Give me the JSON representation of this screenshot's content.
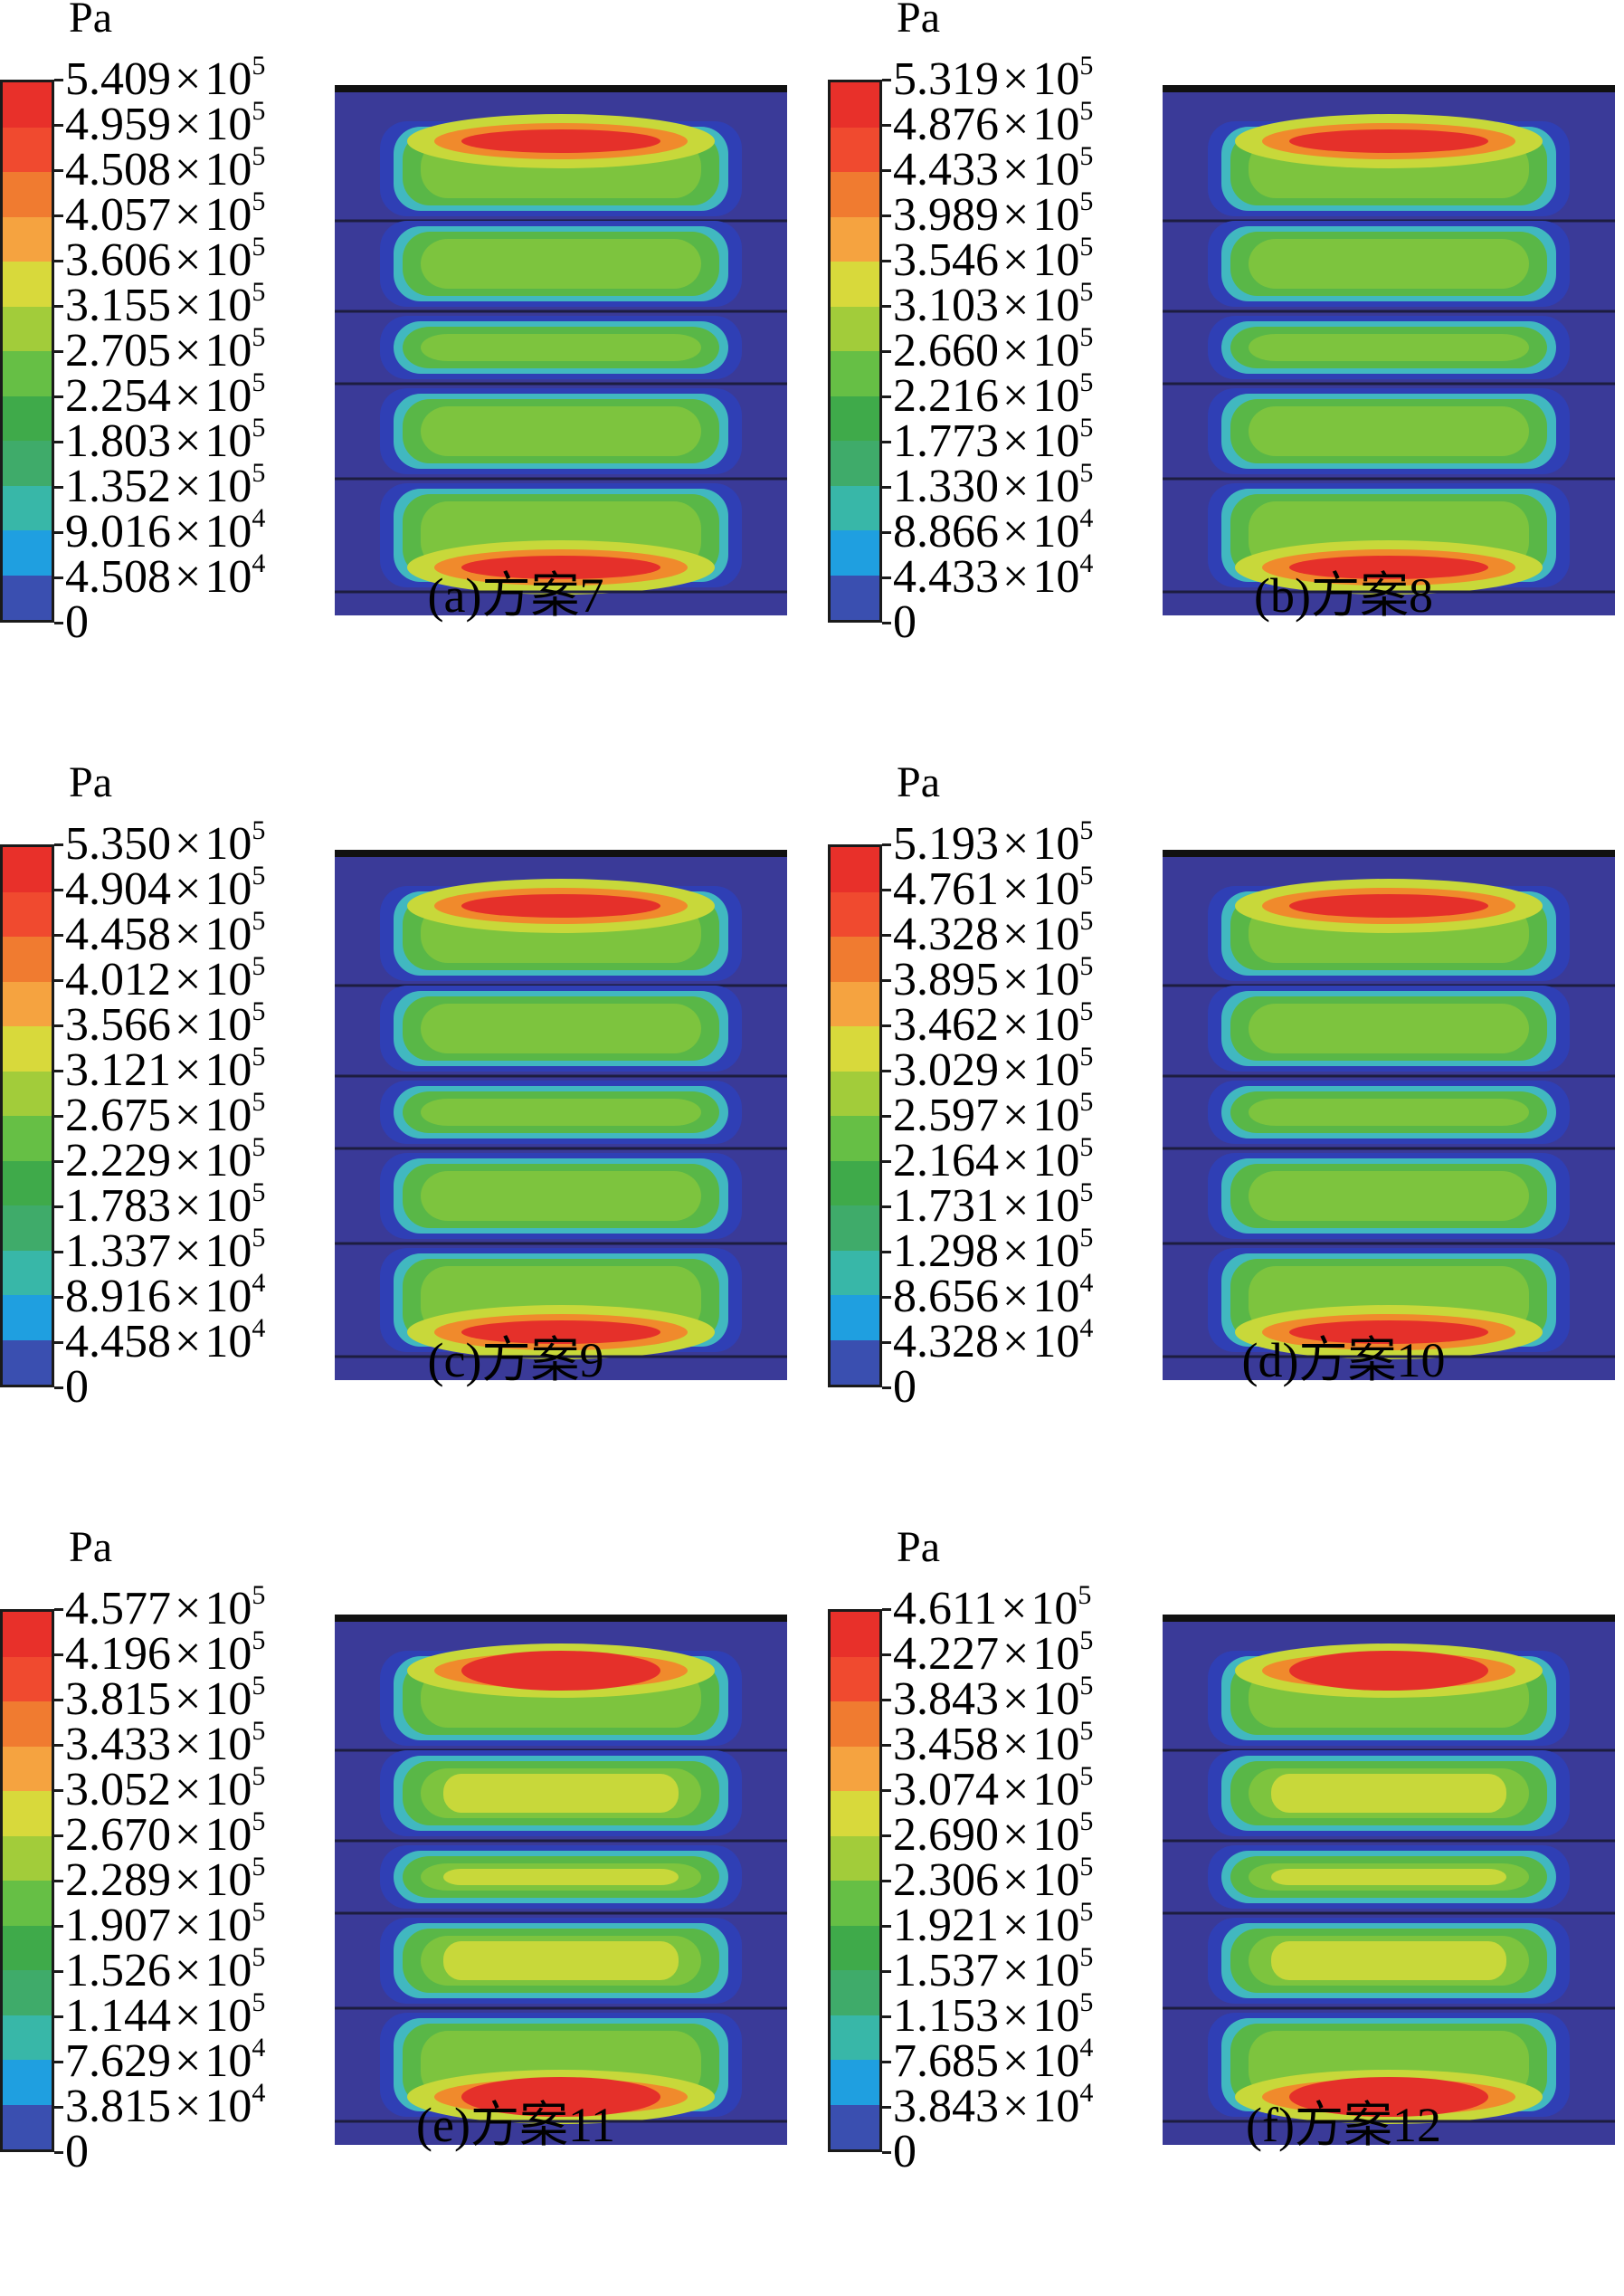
{
  "unit": "Pa",
  "colors": {
    "legend": [
      "#e8302a",
      "#f04a2f",
      "#f07b30",
      "#f5a340",
      "#d8d93b",
      "#a2cc3a",
      "#66bf45",
      "#3faa4a",
      "#3fab6a",
      "#38b7a8",
      "#1f9fe0",
      "#3a4fb0",
      "#3b3b9a"
    ],
    "background": "#3a3a98",
    "edge": "#2f3fb5",
    "cyan": "#41b8c0",
    "green": "#59b747",
    "lightgreen": "#7dc43e",
    "yellow": "#c8d83a",
    "orange": "#f08a2c",
    "red": "#e5302a"
  },
  "panels": [
    {
      "caption": "(a)方案7",
      "labels": [
        [
          "5.409",
          "5"
        ],
        [
          "4.959",
          "5"
        ],
        [
          "4.508",
          "5"
        ],
        [
          "4.057",
          "5"
        ],
        [
          "3.606",
          "5"
        ],
        [
          "3.155",
          "5"
        ],
        [
          "2.705",
          "5"
        ],
        [
          "2.254",
          "5"
        ],
        [
          "1.803",
          "5"
        ],
        [
          "1.352",
          "5"
        ],
        [
          "9.016",
          "4"
        ],
        [
          "4.508",
          "4"
        ],
        [
          "0",
          ""
        ]
      ]
    },
    {
      "caption": "(b)方案8",
      "labels": [
        [
          "5.319",
          "5"
        ],
        [
          "4.876",
          "5"
        ],
        [
          "4.433",
          "5"
        ],
        [
          "3.989",
          "5"
        ],
        [
          "3.546",
          "5"
        ],
        [
          "3.103",
          "5"
        ],
        [
          "2.660",
          "5"
        ],
        [
          "2.216",
          "5"
        ],
        [
          "1.773",
          "5"
        ],
        [
          "1.330",
          "5"
        ],
        [
          "8.866",
          "4"
        ],
        [
          "4.433",
          "4"
        ],
        [
          "0",
          ""
        ]
      ]
    },
    {
      "caption": "(c)方案9",
      "labels": [
        [
          "5.350",
          "5"
        ],
        [
          "4.904",
          "5"
        ],
        [
          "4.458",
          "5"
        ],
        [
          "4.012",
          "5"
        ],
        [
          "3.566",
          "5"
        ],
        [
          "3.121",
          "5"
        ],
        [
          "2.675",
          "5"
        ],
        [
          "2.229",
          "5"
        ],
        [
          "1.783",
          "5"
        ],
        [
          "1.337",
          "5"
        ],
        [
          "8.916",
          "4"
        ],
        [
          "4.458",
          "4"
        ],
        [
          "0",
          ""
        ]
      ]
    },
    {
      "caption": "(d)方案10",
      "labels": [
        [
          "5.193",
          "5"
        ],
        [
          "4.761",
          "5"
        ],
        [
          "4.328",
          "5"
        ],
        [
          "3.895",
          "5"
        ],
        [
          "3.462",
          "5"
        ],
        [
          "3.029",
          "5"
        ],
        [
          "2.597",
          "5"
        ],
        [
          "2.164",
          "5"
        ],
        [
          "1.731",
          "5"
        ],
        [
          "1.298",
          "5"
        ],
        [
          "8.656",
          "4"
        ],
        [
          "4.328",
          "4"
        ],
        [
          "0",
          ""
        ]
      ]
    },
    {
      "caption": "(e)方案11",
      "labels": [
        [
          "4.577",
          "5"
        ],
        [
          "4.196",
          "5"
        ],
        [
          "3.815",
          "5"
        ],
        [
          "3.433",
          "5"
        ],
        [
          "3.052",
          "5"
        ],
        [
          "2.670",
          "5"
        ],
        [
          "2.289",
          "5"
        ],
        [
          "1.907",
          "5"
        ],
        [
          "1.526",
          "5"
        ],
        [
          "1.144",
          "5"
        ],
        [
          "7.629",
          "4"
        ],
        [
          "3.815",
          "4"
        ],
        [
          "0",
          ""
        ]
      ]
    },
    {
      "caption": "(f)方案12",
      "labels": [
        [
          "4.611",
          "5"
        ],
        [
          "4.227",
          "5"
        ],
        [
          "3.843",
          "5"
        ],
        [
          "3.458",
          "5"
        ],
        [
          "3.074",
          "5"
        ],
        [
          "2.690",
          "5"
        ],
        [
          "2.306",
          "5"
        ],
        [
          "1.921",
          "5"
        ],
        [
          "1.537",
          "5"
        ],
        [
          "1.153",
          "5"
        ],
        [
          "7.685",
          "4"
        ],
        [
          "3.843",
          "4"
        ],
        [
          "0",
          ""
        ]
      ]
    }
  ],
  "times": "×",
  "base": "10"
}
